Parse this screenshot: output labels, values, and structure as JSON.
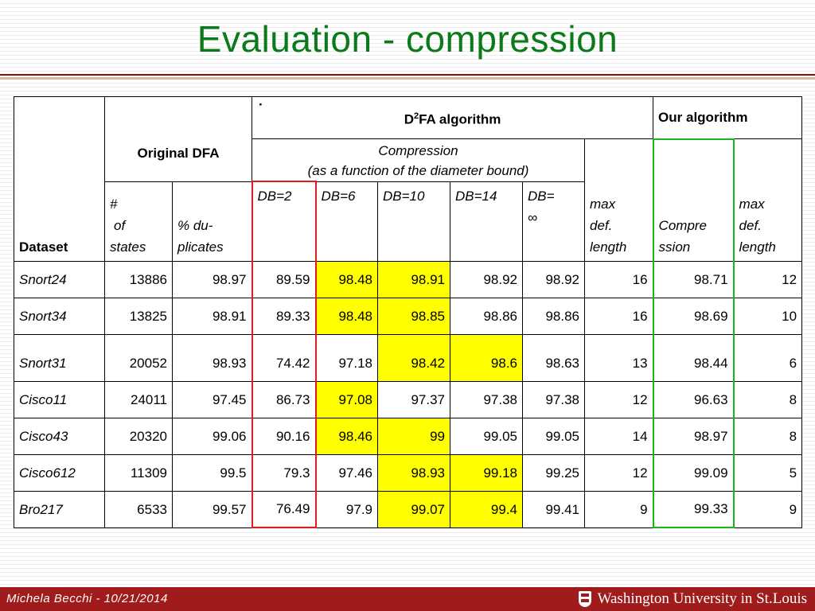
{
  "title": "Evaluation - compression",
  "table": {
    "dataset_label": "Dataset",
    "original_dfa": "Original DFA",
    "d2fa_prefix": "D",
    "d2fa_sup": "2",
    "d2fa_suffix": "FA algorithm",
    "dot": "·",
    "our_algorithm": "Our algorithm",
    "compression_line1": "Compression",
    "compression_line2": "(as a function of the diameter bound)",
    "num_states_line1": "#",
    "num_states_line2": "of",
    "num_states_line3": "states",
    "dup_line1": "% du-",
    "dup_line2": "plicates",
    "db2": "DB=2",
    "db6": "DB=6",
    "db10": "DB=10",
    "db14": "DB=14",
    "dbinf_line1": "DB=",
    "dbinf_line2": "∞",
    "maxdef_line1": "max",
    "maxdef_line2": "def.",
    "maxdef_line3": "length",
    "ours_comp_line1": "Compre",
    "ours_comp_line2": "ssion",
    "ours_max_line1": "max",
    "ours_max_line2": "def.",
    "ours_max_line3": "length",
    "rows": [
      {
        "dataset": "Snort24",
        "states": "13886",
        "dup": "98.97",
        "db2": "89.59",
        "db6": "98.48",
        "db10": "98.91",
        "db14": "98.92",
        "dbinf": "98.92",
        "maxdef": "16",
        "ours": "98.71",
        "ours_max": "12"
      },
      {
        "dataset": "Snort34",
        "states": "13825",
        "dup": "98.91",
        "db2": "89.33",
        "db6": "98.48",
        "db10": "98.85",
        "db14": "98.86",
        "dbinf": "98.86",
        "maxdef": "16",
        "ours": "98.69",
        "ours_max": "10"
      },
      {
        "dataset": "Snort31",
        "states": "20052",
        "dup": "98.93",
        "db2": "74.42",
        "db6": "97.18",
        "db10": "98.42",
        "db14": "98.6",
        "dbinf": "98.63",
        "maxdef": "13",
        "ours": "98.44",
        "ours_max": "6"
      },
      {
        "dataset": "Cisco11",
        "states": "24011",
        "dup": "97.45",
        "db2": "86.73",
        "db6": "97.08",
        "db10": "97.37",
        "db14": "97.38",
        "dbinf": "97.38",
        "maxdef": "12",
        "ours": "96.63",
        "ours_max": "8"
      },
      {
        "dataset": "Cisco43",
        "states": "20320",
        "dup": "99.06",
        "db2": "90.16",
        "db6": "98.46",
        "db10": "99",
        "db14": "99.05",
        "dbinf": "99.05",
        "maxdef": "14",
        "ours": "98.97",
        "ours_max": "8"
      },
      {
        "dataset": "Cisco612",
        "states": "11309",
        "dup": "99.5",
        "db2": "79.3",
        "db6": "97.46",
        "db10": "98.93",
        "db14": "99.18",
        "dbinf": "99.25",
        "maxdef": "12",
        "ours": "99.09",
        "ours_max": "5"
      },
      {
        "dataset": "Bro217",
        "states": "6533",
        "dup": "99.57",
        "db2": "76.49",
        "db6": "97.9",
        "db10": "99.07",
        "db14": "99.4",
        "dbinf": "99.41",
        "maxdef": "9",
        "ours": "99.33",
        "ours_max": "9"
      }
    ]
  },
  "highlight_color": "#ffff00",
  "footer": {
    "author": "Michela Becchi - 10/21/2014",
    "logo_text": "Washington University in St.Louis"
  }
}
